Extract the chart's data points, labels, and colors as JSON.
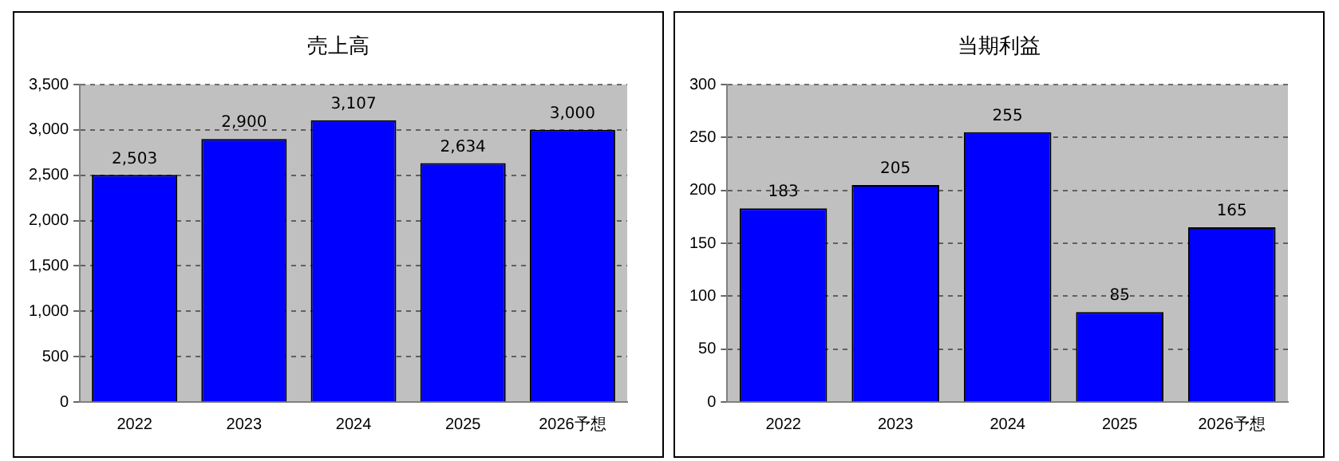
{
  "chart_data": [
    {
      "type": "bar",
      "title": "売上高",
      "categories": [
        "2022",
        "2023",
        "2024",
        "2025",
        "2026予想"
      ],
      "values": [
        2503,
        2900,
        3107,
        2634,
        3000
      ],
      "color": "#0000ff",
      "ylim": [
        0,
        3500
      ],
      "yticks": [
        {
          "value": 0,
          "label": "0"
        },
        {
          "value": 500,
          "label": "500"
        },
        {
          "value": 1000,
          "label": "1,000"
        },
        {
          "value": 1500,
          "label": "1,500"
        },
        {
          "value": 2000,
          "label": "2,000"
        },
        {
          "value": 2500,
          "label": "2,500"
        },
        {
          "value": 3000,
          "label": "3,000"
        },
        {
          "value": 3500,
          "label": "3,500"
        }
      ],
      "grid": "y",
      "data_labels": true,
      "value_labels": [
        "2,503",
        "2,900",
        "3,107",
        "2,634",
        "3,000"
      ],
      "legend": false
    },
    {
      "type": "bar",
      "title": "当期利益",
      "categories": [
        "2022",
        "2023",
        "2024",
        "2025",
        "2026予想"
      ],
      "values": [
        183,
        205,
        255,
        85,
        165
      ],
      "color": "#0000ff",
      "ylim": [
        0,
        300
      ],
      "yticks": [
        0,
        50,
        100,
        150,
        200,
        250,
        300
      ],
      "grid": "y",
      "data_labels": true,
      "legend": false
    }
  ]
}
